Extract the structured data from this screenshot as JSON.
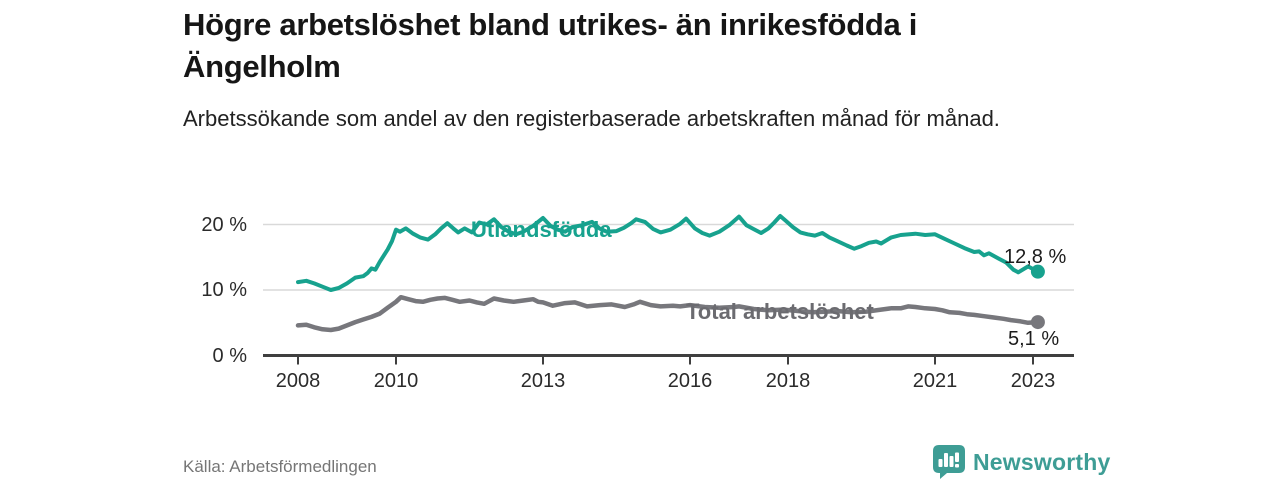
{
  "header": {
    "title": "Högre arbetslöshet bland utrikes- än inrikesfödda i Ängelholm",
    "subtitle": "Arbetssökande som andel av den registerbaserade arbetskraften månad för månad."
  },
  "footer": {
    "source": "Källa: Arbetsförmedlingen",
    "brand": "Newsworthy"
  },
  "colors": {
    "accent_teal": "#17A28E",
    "line_gray": "#77777C",
    "label_gray": "#6B6B70",
    "brand_teal": "#3E9D95",
    "axis": "#3F3F3F",
    "gridline": "#D9D9D9"
  },
  "chart_data": {
    "type": "line",
    "title": "Högre arbetslöshet bland utrikes- än inrikesfödda i Ängelholm",
    "subtitle": "Arbetssökande som andel av den registerbaserade arbetskraften månad för månad.",
    "xlabel": "",
    "ylabel": "",
    "grid": "horizontal",
    "legend_position": "inline-labels",
    "xlim": [
      2007.3,
      2023.85
    ],
    "ylim": [
      0,
      22
    ],
    "x_ticks": [
      {
        "value": 2008,
        "label": "2008"
      },
      {
        "value": 2010,
        "label": "2010"
      },
      {
        "value": 2013,
        "label": "2013"
      },
      {
        "value": 2016,
        "label": "2016"
      },
      {
        "value": 2018,
        "label": "2018"
      },
      {
        "value": 2021,
        "label": "2021"
      },
      {
        "value": 2023,
        "label": "2023"
      }
    ],
    "y_ticks": [
      {
        "value": 0,
        "label": "0 %"
      },
      {
        "value": 10,
        "label": "10 %"
      },
      {
        "value": 20,
        "label": "20 %"
      }
    ],
    "series": [
      {
        "name": "Utlandsfödda",
        "color": "#17A28E",
        "end_label": "12,8 %",
        "end_value": 12.8,
        "points": [
          [
            2008.0,
            11.2
          ],
          [
            2008.17,
            11.4
          ],
          [
            2008.33,
            11.0
          ],
          [
            2008.5,
            10.5
          ],
          [
            2008.67,
            10.0
          ],
          [
            2008.83,
            10.3
          ],
          [
            2009.0,
            11.0
          ],
          [
            2009.17,
            11.9
          ],
          [
            2009.33,
            12.1
          ],
          [
            2009.42,
            12.6
          ],
          [
            2009.5,
            13.3
          ],
          [
            2009.58,
            13.1
          ],
          [
            2009.67,
            14.3
          ],
          [
            2009.83,
            16.2
          ],
          [
            2009.92,
            17.5
          ],
          [
            2010.0,
            19.2
          ],
          [
            2010.08,
            18.9
          ],
          [
            2010.2,
            19.4
          ],
          [
            2010.35,
            18.6
          ],
          [
            2010.5,
            18.0
          ],
          [
            2010.65,
            17.7
          ],
          [
            2010.8,
            18.5
          ],
          [
            2010.92,
            19.4
          ],
          [
            2011.05,
            20.2
          ],
          [
            2011.17,
            19.4
          ],
          [
            2011.27,
            18.8
          ],
          [
            2011.4,
            19.4
          ],
          [
            2011.55,
            18.8
          ],
          [
            2011.7,
            20.3
          ],
          [
            2011.85,
            20.0
          ],
          [
            2012.0,
            20.8
          ],
          [
            2012.15,
            19.6
          ],
          [
            2012.3,
            18.9
          ],
          [
            2012.45,
            18.5
          ],
          [
            2012.6,
            18.9
          ],
          [
            2012.8,
            19.8
          ],
          [
            2013.0,
            21.0
          ],
          [
            2013.15,
            19.8
          ],
          [
            2013.3,
            19.2
          ],
          [
            2013.45,
            18.9
          ],
          [
            2013.6,
            19.6
          ],
          [
            2013.8,
            19.9
          ],
          [
            2014.0,
            20.4
          ],
          [
            2014.15,
            19.4
          ],
          [
            2014.3,
            18.9
          ],
          [
            2014.5,
            19.0
          ],
          [
            2014.65,
            19.5
          ],
          [
            2014.8,
            20.2
          ],
          [
            2014.9,
            20.8
          ],
          [
            2015.08,
            20.4
          ],
          [
            2015.25,
            19.3
          ],
          [
            2015.4,
            18.8
          ],
          [
            2015.6,
            19.2
          ],
          [
            2015.8,
            20.1
          ],
          [
            2015.92,
            20.9
          ],
          [
            2016.1,
            19.4
          ],
          [
            2016.25,
            18.7
          ],
          [
            2016.4,
            18.3
          ],
          [
            2016.6,
            18.9
          ],
          [
            2016.8,
            19.9
          ],
          [
            2017.0,
            21.2
          ],
          [
            2017.15,
            19.9
          ],
          [
            2017.3,
            19.3
          ],
          [
            2017.45,
            18.7
          ],
          [
            2017.6,
            19.4
          ],
          [
            2017.72,
            20.3
          ],
          [
            2017.84,
            21.3
          ],
          [
            2017.95,
            20.6
          ],
          [
            2018.1,
            19.6
          ],
          [
            2018.25,
            18.8
          ],
          [
            2018.4,
            18.5
          ],
          [
            2018.55,
            18.3
          ],
          [
            2018.7,
            18.7
          ],
          [
            2018.85,
            18.0
          ],
          [
            2019.0,
            17.5
          ],
          [
            2019.2,
            16.8
          ],
          [
            2019.35,
            16.3
          ],
          [
            2019.5,
            16.7
          ],
          [
            2019.65,
            17.2
          ],
          [
            2019.8,
            17.4
          ],
          [
            2019.9,
            17.1
          ],
          [
            2020.1,
            18.0
          ],
          [
            2020.3,
            18.4
          ],
          [
            2020.6,
            18.6
          ],
          [
            2020.8,
            18.4
          ],
          [
            2021.0,
            18.5
          ],
          [
            2021.2,
            17.8
          ],
          [
            2021.4,
            17.1
          ],
          [
            2021.6,
            16.4
          ],
          [
            2021.8,
            15.8
          ],
          [
            2021.9,
            15.9
          ],
          [
            2022.0,
            15.3
          ],
          [
            2022.1,
            15.6
          ],
          [
            2022.3,
            14.8
          ],
          [
            2022.45,
            14.2
          ],
          [
            2022.6,
            13.1
          ],
          [
            2022.7,
            12.7
          ],
          [
            2022.9,
            13.6
          ],
          [
            2023.1,
            12.8
          ]
        ]
      },
      {
        "name": "Total arbetslöshet",
        "color": "#77777C",
        "end_label": "5,1 %",
        "end_value": 5.1,
        "points": [
          [
            2008.0,
            4.6
          ],
          [
            2008.17,
            4.7
          ],
          [
            2008.33,
            4.3
          ],
          [
            2008.5,
            4.0
          ],
          [
            2008.67,
            3.9
          ],
          [
            2008.83,
            4.1
          ],
          [
            2009.0,
            4.6
          ],
          [
            2009.17,
            5.1
          ],
          [
            2009.33,
            5.5
          ],
          [
            2009.5,
            5.9
          ],
          [
            2009.67,
            6.4
          ],
          [
            2009.83,
            7.3
          ],
          [
            2010.0,
            8.2
          ],
          [
            2010.1,
            8.9
          ],
          [
            2010.25,
            8.6
          ],
          [
            2010.4,
            8.3
          ],
          [
            2010.55,
            8.2
          ],
          [
            2010.7,
            8.5
          ],
          [
            2010.85,
            8.7
          ],
          [
            2011.0,
            8.8
          ],
          [
            2011.15,
            8.5
          ],
          [
            2011.3,
            8.2
          ],
          [
            2011.5,
            8.4
          ],
          [
            2011.65,
            8.1
          ],
          [
            2011.8,
            7.9
          ],
          [
            2012.0,
            8.7
          ],
          [
            2012.2,
            8.4
          ],
          [
            2012.4,
            8.2
          ],
          [
            2012.6,
            8.4
          ],
          [
            2012.8,
            8.6
          ],
          [
            2012.9,
            8.2
          ],
          [
            2013.0,
            8.1
          ],
          [
            2013.2,
            7.6
          ],
          [
            2013.45,
            8.0
          ],
          [
            2013.65,
            8.1
          ],
          [
            2013.9,
            7.5
          ],
          [
            2014.16,
            7.7
          ],
          [
            2014.4,
            7.8
          ],
          [
            2014.67,
            7.4
          ],
          [
            2014.85,
            7.8
          ],
          [
            2014.98,
            8.2
          ],
          [
            2015.2,
            7.7
          ],
          [
            2015.4,
            7.5
          ],
          [
            2015.65,
            7.6
          ],
          [
            2015.8,
            7.5
          ],
          [
            2016.0,
            7.7
          ],
          [
            2016.3,
            7.4
          ],
          [
            2016.6,
            7.3
          ],
          [
            2016.9,
            7.4
          ],
          [
            2017.0,
            7.5
          ],
          [
            2017.3,
            7.1
          ],
          [
            2017.6,
            6.9
          ],
          [
            2017.9,
            7.0
          ],
          [
            2018.2,
            6.8
          ],
          [
            2018.5,
            6.6
          ],
          [
            2018.8,
            6.7
          ],
          [
            2019.0,
            6.8
          ],
          [
            2019.3,
            6.6
          ],
          [
            2019.6,
            6.7
          ],
          [
            2019.9,
            7.0
          ],
          [
            2020.1,
            7.2
          ],
          [
            2020.3,
            7.2
          ],
          [
            2020.45,
            7.5
          ],
          [
            2020.6,
            7.4
          ],
          [
            2020.8,
            7.2
          ],
          [
            2021.0,
            7.1
          ],
          [
            2021.15,
            6.9
          ],
          [
            2021.3,
            6.6
          ],
          [
            2021.5,
            6.5
          ],
          [
            2021.65,
            6.3
          ],
          [
            2021.8,
            6.2
          ],
          [
            2022.0,
            6.0
          ],
          [
            2022.2,
            5.8
          ],
          [
            2022.4,
            5.6
          ],
          [
            2022.55,
            5.4
          ],
          [
            2022.75,
            5.2
          ],
          [
            2022.9,
            5.0
          ],
          [
            2023.1,
            5.1
          ]
        ]
      }
    ]
  }
}
